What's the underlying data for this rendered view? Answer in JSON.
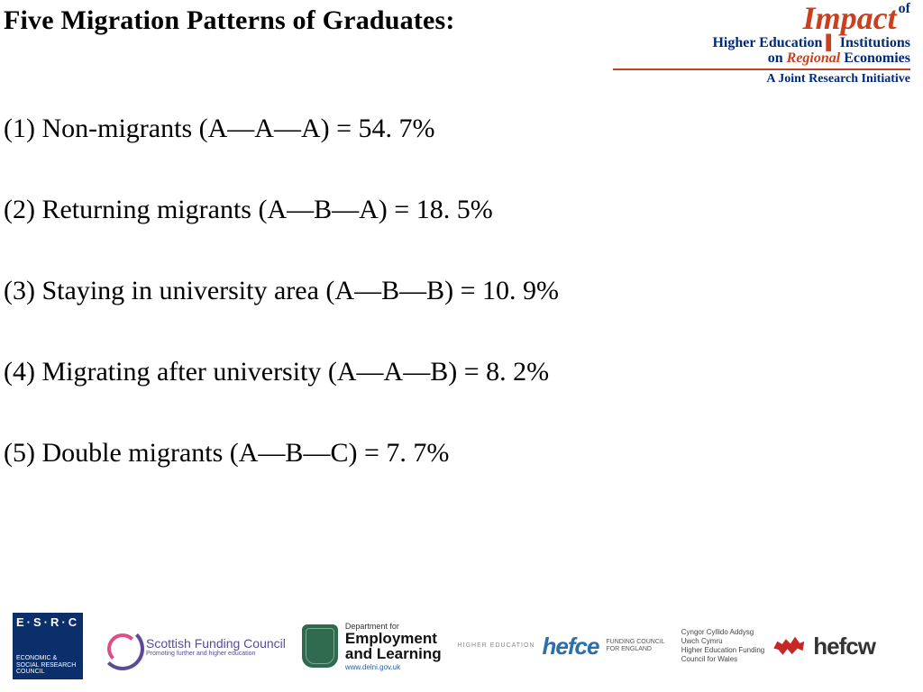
{
  "colors": {
    "text": "#000000",
    "background": "#ffffff",
    "brand_navy": "#002b7a",
    "brand_orange": "#c8401f",
    "esrc_bg": "#0b2f6b",
    "sfc_purple": "#5b4a9a",
    "sfc_pink": "#d94f8a",
    "del_green": "#2f6a4f",
    "hefce_blue": "#2a6faa",
    "hefcw_red": "#c62828"
  },
  "typography": {
    "title_fontsize_pt": 22,
    "body_fontsize_pt": 22,
    "font_family": "Times New Roman"
  },
  "title": "Five Migration Patterns of Graduates:",
  "logo_top": {
    "l1_main": "Impact",
    "l1_of": "of",
    "l2_left": "Higher Education",
    "l2_right": "Institutions",
    "l3_left": "on ",
    "l3_mid": "Regional",
    "l3_right": " Economies",
    "l4": "A Joint Research Initiative"
  },
  "items": [
    "(1) Non-migrants  (A—A—A) = 54. 7%",
    "(2) Returning  migrants (A—B—A) = 18. 5%",
    "(3) Staying in university area (A—B—B) = 10. 9%",
    "(4) Migrating after university (A—A—B) = 8. 2%",
    "(5) Double migrants (A—B—C) = 7. 7%"
  ],
  "footer": {
    "esrc": {
      "big": "E·S·R·C",
      "sub": "ECONOMIC & SOCIAL RESEARCH COUNCIL"
    },
    "sfc": {
      "t1": "Scottish Funding Council",
      "t2": "Promoting further and higher education"
    },
    "del": {
      "d1": "Department for",
      "d2a": "Employment",
      "d2b": "and Learning",
      "d3": "www.delni.gov.uk"
    },
    "hefce": {
      "s0": "HIGHER EDUCATION",
      "mark": "hefce",
      "s1": "FUNDING COUNCIL",
      "s2": "FOR ENGLAND"
    },
    "hefcw": {
      "w1": "Cyngor Cyllido Addysg",
      "w2": "Uwch Cymru",
      "w3": "Higher Education Funding",
      "w4": "Council for Wales",
      "mark": "hefcw"
    }
  }
}
